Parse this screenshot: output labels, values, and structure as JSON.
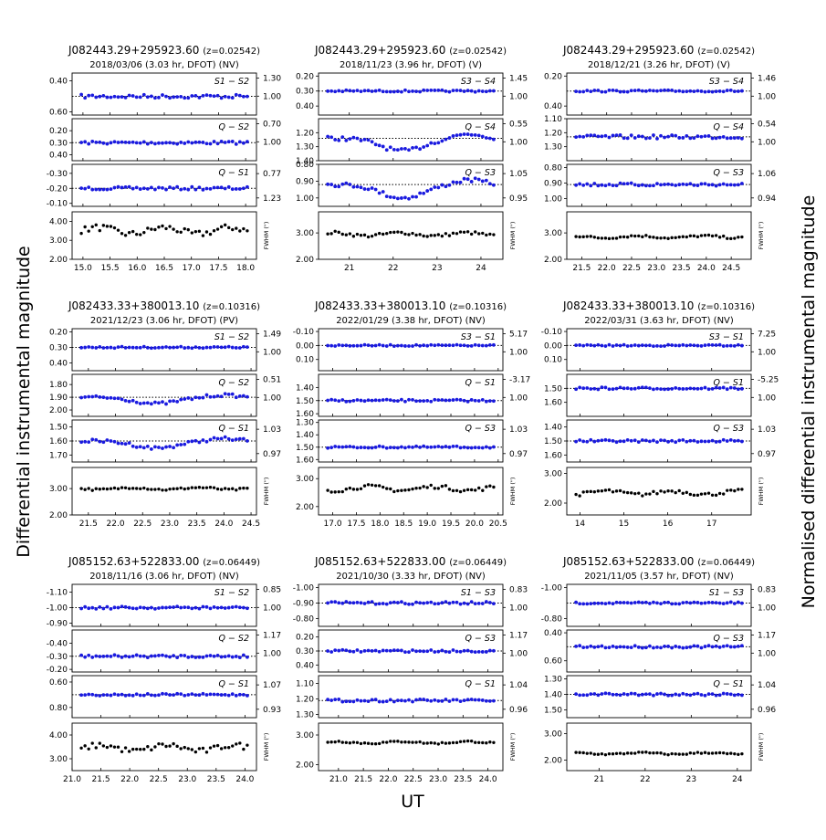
{
  "figure": {
    "ylabel_left": "Differential instrumental magnitude",
    "ylabel_right": "Normalised differential instrumental magnitude",
    "xlabel": "UT",
    "fwhm_label": "FWHM (\")"
  },
  "colors": {
    "diff": "#1a1adf",
    "fwhm": "#000000",
    "ref": "#000000"
  },
  "chart_data": [
    {
      "type": "scatter",
      "title": "J082443.29+295923.60",
      "z": "(z=0.02542)",
      "subtitle": "2018/03/06  (3.03 hr, DFOT)  (NV)",
      "xlim": [
        14.8,
        18.2
      ],
      "xticks": [
        "15.0",
        "15.5",
        "16.0",
        "16.5",
        "17.0",
        "17.5",
        "18.0"
      ],
      "panels": [
        {
          "label": "S1 − S2",
          "lim": [
            0.35,
            0.62
          ],
          "ticks": [
            "0.40",
            "0.60"
          ],
          "rticks": [
            "1.30",
            "1.00"
          ],
          "center": 0.5,
          "amp": 0.012,
          "dip": 0
        },
        {
          "label": "Q − S2",
          "lim": [
            0.1,
            0.45
          ],
          "ticks": [
            "0.20",
            "0.30",
            "0.40"
          ],
          "rticks": [
            "0.70",
            "1.00"
          ],
          "center": 0.3,
          "amp": 0.012,
          "dip": 0
        },
        {
          "label": "Q − S1",
          "lim": [
            -0.36,
            -0.08
          ],
          "ticks": [
            "-0.30",
            "-0.20",
            "-0.10"
          ],
          "rticks": [
            "0.77",
            "1.23"
          ],
          "center": -0.2,
          "amp": 0.01,
          "dip": 0
        }
      ],
      "fwhm": {
        "lim": [
          2.0,
          4.5
        ],
        "ticks": [
          "2.00",
          "3.00",
          "4.00"
        ],
        "mean": 3.5,
        "amp": 0.35
      }
    },
    {
      "type": "scatter",
      "title": "J082443.29+295923.60",
      "z": "(z=0.02542)",
      "subtitle": "2018/11/23  (3.96 hr, DFOT)  (V)",
      "xlim": [
        20.3,
        24.5
      ],
      "xticks": [
        "21",
        "22",
        "23",
        "24"
      ],
      "panels": [
        {
          "label": "S3 − S4",
          "lim": [
            0.18,
            0.46
          ],
          "ticks": [
            "0.20",
            "0.30",
            "0.40"
          ],
          "rticks": [
            "1.45",
            "1.00"
          ],
          "center": 0.3,
          "amp": 0.006,
          "dip": 0
        },
        {
          "label": "Q − S4",
          "lim": [
            1.1,
            1.4
          ],
          "ticks": [
            "1.20",
            "1.30",
            "1.40"
          ],
          "rticks": [
            "0.55",
            "1.00"
          ],
          "center": 1.24,
          "amp": 0.015,
          "dip": 0.09
        },
        {
          "label": "Q − S3",
          "lim": [
            0.8,
            1.05
          ],
          "ticks": [
            "0.80",
            "0.90",
            "1.00"
          ],
          "rticks": [
            "1.05",
            "0.95"
          ],
          "center": 0.92,
          "amp": 0.012,
          "dip": 0.08
        }
      ],
      "fwhm": {
        "lim": [
          2.0,
          3.8
        ],
        "ticks": [
          "2.00",
          "3.00"
        ],
        "mean": 2.95,
        "amp": 0.12
      }
    },
    {
      "type": "scatter",
      "title": "J082443.29+295923.60",
      "z": "(z=0.02542)",
      "subtitle": "2018/12/21  (3.26 hr, DFOT)  (V)",
      "xlim": [
        21.2,
        24.9
      ],
      "xticks": [
        "21.5",
        "22.0",
        "22.5",
        "23.0",
        "23.5",
        "24.0",
        "24.5"
      ],
      "panels": [
        {
          "label": "S3 − S4",
          "lim": [
            0.18,
            0.46
          ],
          "ticks": [
            "0.20",
            "0.40"
          ],
          "rticks": [
            "1.46",
            "1.00"
          ],
          "center": 0.3,
          "amp": 0.006,
          "dip": 0
        },
        {
          "label": "Q − S4",
          "lim": [
            1.1,
            1.4
          ],
          "ticks": [
            "1.10",
            "1.20",
            "1.30"
          ],
          "rticks": [
            "0.54",
            "1.00"
          ],
          "center": 1.23,
          "amp": 0.013,
          "dip": 0
        },
        {
          "label": "Q − S3",
          "lim": [
            0.78,
            1.05
          ],
          "ticks": [
            "0.80",
            "0.90",
            "1.00"
          ],
          "rticks": [
            "1.06",
            "0.94"
          ],
          "center": 0.91,
          "amp": 0.01,
          "dip": 0
        }
      ],
      "fwhm": {
        "lim": [
          2.0,
          3.8
        ],
        "ticks": [
          "2.00",
          "3.00"
        ],
        "mean": 2.85,
        "amp": 0.08
      }
    },
    {
      "type": "scatter",
      "title": "J082433.33+380013.10",
      "z": "(z=0.10316)",
      "subtitle": "2021/12/23  (3.06 hr, DFOT)  (PV)",
      "xlim": [
        21.2,
        24.6
      ],
      "xticks": [
        "21.5",
        "22.0",
        "22.5",
        "23.0",
        "23.5",
        "24.0",
        "24.5"
      ],
      "panels": [
        {
          "label": "S1 − S2",
          "lim": [
            0.18,
            0.45
          ],
          "ticks": [
            "0.20",
            "0.30",
            "0.40"
          ],
          "rticks": [
            "1.49",
            "1.00"
          ],
          "center": 0.3,
          "amp": 0.005,
          "dip": 0
        },
        {
          "label": "Q − S2",
          "lim": [
            1.72,
            2.05
          ],
          "ticks": [
            "1.80",
            "1.90",
            "2.00"
          ],
          "rticks": [
            "0.51",
            "1.00"
          ],
          "center": 1.9,
          "amp": 0.012,
          "dip": 0.05
        },
        {
          "label": "Q − S1",
          "lim": [
            1.45,
            1.75
          ],
          "ticks": [
            "1.50",
            "1.60",
            "1.70"
          ],
          "rticks": [
            "1.03",
            "0.97"
          ],
          "center": 1.6,
          "amp": 0.012,
          "dip": 0.05
        }
      ],
      "fwhm": {
        "lim": [
          2.0,
          3.8
        ],
        "ticks": [
          "2.00",
          "3.00"
        ],
        "mean": 3.0,
        "amp": 0.08
      }
    },
    {
      "type": "scatter",
      "title": "J082433.33+380013.10",
      "z": "(z=0.10316)",
      "subtitle": "2022/01/29  (3.38 hr, DFOT)  (NV)",
      "xlim": [
        16.7,
        20.6
      ],
      "xticks": [
        "17.0",
        "17.5",
        "18.0",
        "18.5",
        "19.0",
        "19.5",
        "20.0",
        "20.5"
      ],
      "panels": [
        {
          "label": "S3 − S1",
          "lim": [
            -0.12,
            0.18
          ],
          "ticks": [
            "-0.10",
            "0.00",
            "0.10"
          ],
          "rticks": [
            "5.17",
            "1.00"
          ],
          "center": 0.0,
          "amp": 0.005,
          "dip": 0
        },
        {
          "label": "Q − S1",
          "lim": [
            1.3,
            1.62
          ],
          "ticks": [
            "1.40",
            "1.50",
            "1.60"
          ],
          "rticks": [
            "-3.17",
            "1.00"
          ],
          "center": 1.5,
          "amp": 0.008,
          "dip": 0
        },
        {
          "label": "Q − S3",
          "lim": [
            1.28,
            1.62
          ],
          "ticks": [
            "1.30",
            "1.40",
            "1.50",
            "1.60"
          ],
          "rticks": [
            "1.03",
            "0.97"
          ],
          "center": 1.5,
          "amp": 0.008,
          "dip": 0
        }
      ],
      "fwhm": {
        "lim": [
          1.7,
          3.4
        ],
        "ticks": [
          "2.00",
          "3.00"
        ],
        "mean": 2.65,
        "amp": 0.14
      }
    },
    {
      "type": "scatter",
      "title": "J082433.33+380013.10",
      "z": "(z=0.10316)",
      "subtitle": "2022/03/31  (3.63 hr, DFOT)  (NV)",
      "xlim": [
        13.7,
        17.9
      ],
      "xticks": [
        "14",
        "15",
        "16",
        "17"
      ],
      "panels": [
        {
          "label": "S3 − S1",
          "lim": [
            -0.12,
            0.18
          ],
          "ticks": [
            "-0.10",
            "0.00",
            "0.10"
          ],
          "rticks": [
            "7.25",
            "1.00"
          ],
          "center": 0.0,
          "amp": 0.005,
          "dip": 0
        },
        {
          "label": "Q − S1",
          "lim": [
            1.4,
            1.7
          ],
          "ticks": [
            "1.50",
            "1.60"
          ],
          "rticks": [
            "-5.25",
            "1.00"
          ],
          "center": 1.5,
          "amp": 0.008,
          "dip": 0
        },
        {
          "label": "Q − S3",
          "lim": [
            1.35,
            1.65
          ],
          "ticks": [
            "1.40",
            "1.50",
            "1.60"
          ],
          "rticks": [
            "1.03",
            "0.97"
          ],
          "center": 1.5,
          "amp": 0.008,
          "dip": 0
        }
      ],
      "fwhm": {
        "lim": [
          1.6,
          3.2
        ],
        "ticks": [
          "2.00",
          "3.00"
        ],
        "mean": 2.35,
        "amp": 0.12
      }
    },
    {
      "type": "scatter",
      "title": "J085152.63+522833.00",
      "z": "(z=0.06449)",
      "subtitle": "2018/11/16  (3.06 hr, DFOT)  (NV)",
      "xlim": [
        21.0,
        24.2
      ],
      "xticks": [
        "21.0",
        "21.5",
        "22.0",
        "22.5",
        "23.0",
        "23.5",
        "24.0"
      ],
      "panels": [
        {
          "label": "S1 − S2",
          "lim": [
            -1.15,
            -0.88
          ],
          "ticks": [
            "-1.10",
            "-1.00",
            "-0.90"
          ],
          "rticks": [
            "0.85",
            "1.00"
          ],
          "center": -1.0,
          "amp": 0.008,
          "dip": 0
        },
        {
          "label": "Q − S2",
          "lim": [
            -0.5,
            -0.18
          ],
          "ticks": [
            "-0.40",
            "-0.30",
            "-0.20"
          ],
          "rticks": [
            "1.17",
            "1.00"
          ],
          "center": -0.3,
          "amp": 0.01,
          "dip": 0
        },
        {
          "label": "Q − S1",
          "lim": [
            0.55,
            0.88
          ],
          "ticks": [
            "0.60",
            "0.80"
          ],
          "rticks": [
            "1.07",
            "0.93"
          ],
          "center": 0.7,
          "amp": 0.008,
          "dip": 0
        }
      ],
      "fwhm": {
        "lim": [
          2.5,
          4.5
        ],
        "ticks": [
          "3.00",
          "4.00"
        ],
        "mean": 3.45,
        "amp": 0.25
      }
    },
    {
      "type": "scatter",
      "title": "J085152.63+522833.00",
      "z": "(z=0.06449)",
      "subtitle": "2021/10/30  (3.33 hr, DFOT)  (NV)",
      "xlim": [
        20.6,
        24.3
      ],
      "xticks": [
        "21.0",
        "21.5",
        "22.0",
        "22.5",
        "23.0",
        "23.5",
        "24.0"
      ],
      "panels": [
        {
          "label": "S1 − S3",
          "lim": [
            -1.02,
            -0.75
          ],
          "ticks": [
            "-1.00",
            "-0.90",
            "-0.80"
          ],
          "rticks": [
            "0.83",
            "1.00"
          ],
          "center": -0.9,
          "amp": 0.008,
          "dip": 0
        },
        {
          "label": "Q − S3",
          "lim": [
            0.15,
            0.45
          ],
          "ticks": [
            "0.20",
            "0.30",
            "0.40"
          ],
          "rticks": [
            "1.17",
            "1.00"
          ],
          "center": 0.3,
          "amp": 0.008,
          "dip": 0
        },
        {
          "label": "Q − S1",
          "lim": [
            1.05,
            1.32
          ],
          "ticks": [
            "1.10",
            "1.20",
            "1.30"
          ],
          "rticks": [
            "1.04",
            "0.96"
          ],
          "center": 1.21,
          "amp": 0.008,
          "dip": 0
        }
      ],
      "fwhm": {
        "lim": [
          1.8,
          3.4
        ],
        "ticks": [
          "2.00",
          "3.00"
        ],
        "mean": 2.75,
        "amp": 0.06
      }
    },
    {
      "type": "scatter",
      "title": "J085152.63+522833.00",
      "z": "(z=0.06449)",
      "subtitle": "2021/11/05  (3.57 hr, DFOT)  (NV)",
      "xlim": [
        20.3,
        24.3
      ],
      "xticks": [
        "21",
        "22",
        "23",
        "24"
      ],
      "panels": [
        {
          "label": "S1 − S3",
          "lim": [
            -1.02,
            -0.75
          ],
          "ticks": [
            "-1.00",
            "-0.80"
          ],
          "rticks": [
            "0.83",
            "1.00"
          ],
          "center": -0.9,
          "amp": 0.006,
          "dip": 0
        },
        {
          "label": "Q − S3",
          "lim": [
            0.38,
            0.68
          ],
          "ticks": [
            "0.40",
            "0.60"
          ],
          "rticks": [
            "1.17",
            "1.00"
          ],
          "center": 0.5,
          "amp": 0.008,
          "dip": 0
        },
        {
          "label": "Q − S1",
          "lim": [
            1.28,
            1.55
          ],
          "ticks": [
            "1.30",
            "1.40",
            "1.50"
          ],
          "rticks": [
            "1.04",
            "0.96"
          ],
          "center": 1.4,
          "amp": 0.008,
          "dip": 0
        }
      ],
      "fwhm": {
        "lim": [
          1.6,
          3.4
        ],
        "ticks": [
          "2.00",
          "3.00"
        ],
        "mean": 2.25,
        "amp": 0.06
      }
    }
  ]
}
